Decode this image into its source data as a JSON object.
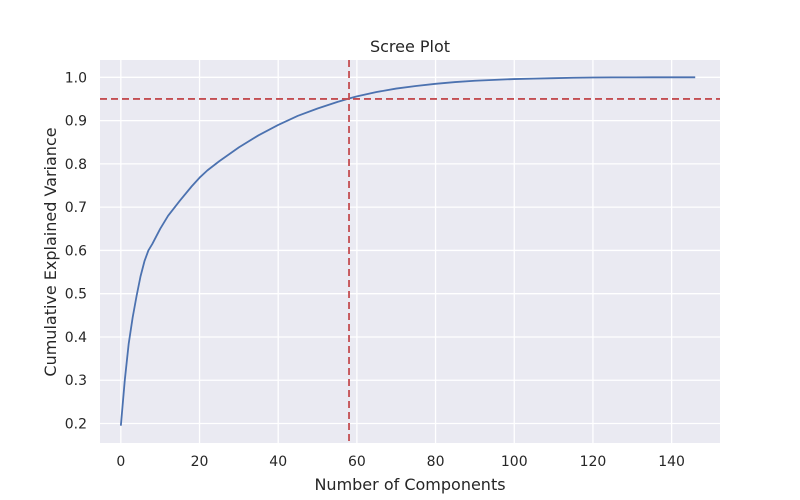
{
  "chart_data": {
    "type": "line",
    "title": "Scree Plot",
    "xlabel": "Number of Components",
    "ylabel": "Cumulative Explained Variance",
    "xlim": [
      -5.3,
      152.3
    ],
    "ylim": [
      0.155,
      1.04
    ],
    "xticks": [
      0,
      20,
      40,
      60,
      80,
      100,
      120,
      140
    ],
    "yticks": [
      0.2,
      0.3,
      0.4,
      0.5,
      0.6,
      0.7,
      0.8,
      0.9,
      1.0
    ],
    "xtick_labels": [
      "0",
      "20",
      "40",
      "60",
      "80",
      "100",
      "120",
      "140"
    ],
    "ytick_labels": [
      "0.2",
      "0.3",
      "0.4",
      "0.5",
      "0.6",
      "0.7",
      "0.8",
      "0.9",
      "1.0"
    ],
    "grid": true,
    "background": "#EAEAF2",
    "series": [
      {
        "color": "#4C72B0",
        "x": [
          0,
          1,
          2,
          3,
          4,
          5,
          6,
          7,
          8,
          10,
          12,
          15,
          18,
          20,
          22,
          25,
          30,
          35,
          40,
          45,
          50,
          55,
          58,
          60,
          65,
          70,
          75,
          80,
          85,
          90,
          95,
          100,
          105,
          110,
          115,
          120,
          125,
          130,
          135,
          140,
          146
        ],
        "y": [
          0.195,
          0.3,
          0.385,
          0.445,
          0.495,
          0.54,
          0.575,
          0.6,
          0.615,
          0.65,
          0.68,
          0.715,
          0.748,
          0.768,
          0.785,
          0.806,
          0.838,
          0.866,
          0.89,
          0.911,
          0.928,
          0.943,
          0.951,
          0.956,
          0.966,
          0.974,
          0.98,
          0.985,
          0.989,
          0.992,
          0.994,
          0.996,
          0.997,
          0.998,
          0.999,
          0.9995,
          0.9998,
          0.9999,
          1.0,
          1.0,
          1.0
        ]
      }
    ],
    "reference_lines": [
      {
        "orientation": "horizontal",
        "value": 0.95,
        "color": "#C44E52",
        "style": "dashed"
      },
      {
        "orientation": "vertical",
        "value": 58,
        "color": "#C44E52",
        "style": "dashed"
      }
    ]
  }
}
